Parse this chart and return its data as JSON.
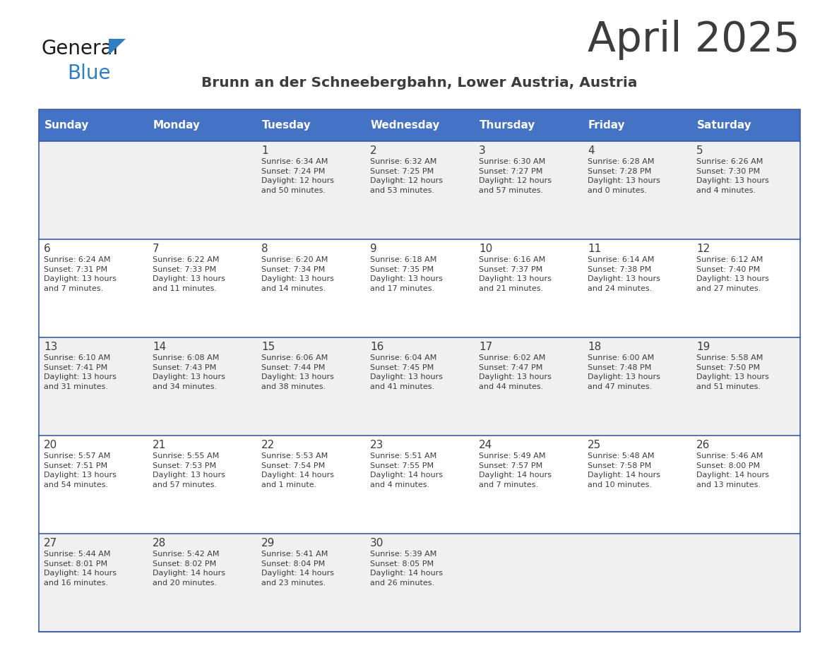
{
  "title": "April 2025",
  "subtitle": "Brunn an der Schneebergbahn, Lower Austria, Austria",
  "header_bg_color": "#4472C4",
  "header_text_color": "#FFFFFF",
  "days_of_week": [
    "Sunday",
    "Monday",
    "Tuesday",
    "Wednesday",
    "Thursday",
    "Friday",
    "Saturday"
  ],
  "row_bg_even": "#F0F0F0",
  "row_bg_odd": "#FFFFFF",
  "divider_color": "#3B5EA6",
  "text_color": "#3C3C3C",
  "logo_general_color": "#1A1A1A",
  "logo_blue_color": "#2E7EC1",
  "calendar_data": [
    [
      {
        "day": "",
        "info": ""
      },
      {
        "day": "",
        "info": ""
      },
      {
        "day": "1",
        "info": "Sunrise: 6:34 AM\nSunset: 7:24 PM\nDaylight: 12 hours\nand 50 minutes."
      },
      {
        "day": "2",
        "info": "Sunrise: 6:32 AM\nSunset: 7:25 PM\nDaylight: 12 hours\nand 53 minutes."
      },
      {
        "day": "3",
        "info": "Sunrise: 6:30 AM\nSunset: 7:27 PM\nDaylight: 12 hours\nand 57 minutes."
      },
      {
        "day": "4",
        "info": "Sunrise: 6:28 AM\nSunset: 7:28 PM\nDaylight: 13 hours\nand 0 minutes."
      },
      {
        "day": "5",
        "info": "Sunrise: 6:26 AM\nSunset: 7:30 PM\nDaylight: 13 hours\nand 4 minutes."
      }
    ],
    [
      {
        "day": "6",
        "info": "Sunrise: 6:24 AM\nSunset: 7:31 PM\nDaylight: 13 hours\nand 7 minutes."
      },
      {
        "day": "7",
        "info": "Sunrise: 6:22 AM\nSunset: 7:33 PM\nDaylight: 13 hours\nand 11 minutes."
      },
      {
        "day": "8",
        "info": "Sunrise: 6:20 AM\nSunset: 7:34 PM\nDaylight: 13 hours\nand 14 minutes."
      },
      {
        "day": "9",
        "info": "Sunrise: 6:18 AM\nSunset: 7:35 PM\nDaylight: 13 hours\nand 17 minutes."
      },
      {
        "day": "10",
        "info": "Sunrise: 6:16 AM\nSunset: 7:37 PM\nDaylight: 13 hours\nand 21 minutes."
      },
      {
        "day": "11",
        "info": "Sunrise: 6:14 AM\nSunset: 7:38 PM\nDaylight: 13 hours\nand 24 minutes."
      },
      {
        "day": "12",
        "info": "Sunrise: 6:12 AM\nSunset: 7:40 PM\nDaylight: 13 hours\nand 27 minutes."
      }
    ],
    [
      {
        "day": "13",
        "info": "Sunrise: 6:10 AM\nSunset: 7:41 PM\nDaylight: 13 hours\nand 31 minutes."
      },
      {
        "day": "14",
        "info": "Sunrise: 6:08 AM\nSunset: 7:43 PM\nDaylight: 13 hours\nand 34 minutes."
      },
      {
        "day": "15",
        "info": "Sunrise: 6:06 AM\nSunset: 7:44 PM\nDaylight: 13 hours\nand 38 minutes."
      },
      {
        "day": "16",
        "info": "Sunrise: 6:04 AM\nSunset: 7:45 PM\nDaylight: 13 hours\nand 41 minutes."
      },
      {
        "day": "17",
        "info": "Sunrise: 6:02 AM\nSunset: 7:47 PM\nDaylight: 13 hours\nand 44 minutes."
      },
      {
        "day": "18",
        "info": "Sunrise: 6:00 AM\nSunset: 7:48 PM\nDaylight: 13 hours\nand 47 minutes."
      },
      {
        "day": "19",
        "info": "Sunrise: 5:58 AM\nSunset: 7:50 PM\nDaylight: 13 hours\nand 51 minutes."
      }
    ],
    [
      {
        "day": "20",
        "info": "Sunrise: 5:57 AM\nSunset: 7:51 PM\nDaylight: 13 hours\nand 54 minutes."
      },
      {
        "day": "21",
        "info": "Sunrise: 5:55 AM\nSunset: 7:53 PM\nDaylight: 13 hours\nand 57 minutes."
      },
      {
        "day": "22",
        "info": "Sunrise: 5:53 AM\nSunset: 7:54 PM\nDaylight: 14 hours\nand 1 minute."
      },
      {
        "day": "23",
        "info": "Sunrise: 5:51 AM\nSunset: 7:55 PM\nDaylight: 14 hours\nand 4 minutes."
      },
      {
        "day": "24",
        "info": "Sunrise: 5:49 AM\nSunset: 7:57 PM\nDaylight: 14 hours\nand 7 minutes."
      },
      {
        "day": "25",
        "info": "Sunrise: 5:48 AM\nSunset: 7:58 PM\nDaylight: 14 hours\nand 10 minutes."
      },
      {
        "day": "26",
        "info": "Sunrise: 5:46 AM\nSunset: 8:00 PM\nDaylight: 14 hours\nand 13 minutes."
      }
    ],
    [
      {
        "day": "27",
        "info": "Sunrise: 5:44 AM\nSunset: 8:01 PM\nDaylight: 14 hours\nand 16 minutes."
      },
      {
        "day": "28",
        "info": "Sunrise: 5:42 AM\nSunset: 8:02 PM\nDaylight: 14 hours\nand 20 minutes."
      },
      {
        "day": "29",
        "info": "Sunrise: 5:41 AM\nSunset: 8:04 PM\nDaylight: 14 hours\nand 23 minutes."
      },
      {
        "day": "30",
        "info": "Sunrise: 5:39 AM\nSunset: 8:05 PM\nDaylight: 14 hours\nand 26 minutes."
      },
      {
        "day": "",
        "info": ""
      },
      {
        "day": "",
        "info": ""
      },
      {
        "day": "",
        "info": ""
      }
    ]
  ],
  "figwidth": 11.88,
  "figheight": 9.18,
  "dpi": 100
}
